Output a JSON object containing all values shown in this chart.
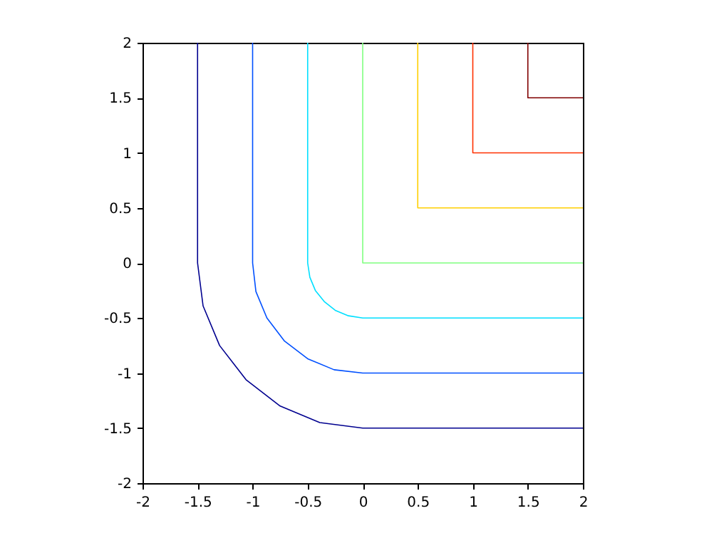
{
  "chart_data": {
    "type": "line",
    "xlim": [
      -2,
      2
    ],
    "ylim": [
      -2,
      2
    ],
    "xticks": [
      -2,
      -1.5,
      -1,
      -0.5,
      0,
      0.5,
      1,
      1.5,
      2
    ],
    "yticks": [
      -2,
      -1.5,
      -1,
      -0.5,
      0,
      0.5,
      1,
      1.5,
      2
    ],
    "grid": false,
    "legend": false,
    "line_style": "solid",
    "marker": "none",
    "series": [
      {
        "color": "#00008f",
        "x": [
          -1.5,
          -1.5,
          -1.45,
          -1.3,
          -1.06,
          -0.75,
          -0.39,
          0,
          2
        ],
        "values": [
          2,
          0,
          -0.39,
          -0.75,
          -1.06,
          -1.3,
          -1.45,
          -1.5,
          -1.5
        ]
      },
      {
        "color": "#0050ff",
        "x": [
          -1,
          -1,
          -0.97,
          -0.87,
          -0.71,
          -0.5,
          -0.26,
          0,
          2
        ],
        "values": [
          2,
          0,
          -0.26,
          -0.5,
          -0.71,
          -0.87,
          -0.97,
          -1,
          -1
        ]
      },
      {
        "color": "#00dfff",
        "x": [
          -0.5,
          -0.5,
          -0.48,
          -0.43,
          -0.35,
          -0.25,
          -0.13,
          0,
          2
        ],
        "values": [
          2,
          0,
          -0.13,
          -0.25,
          -0.35,
          -0.43,
          -0.48,
          -0.5,
          -0.5
        ]
      },
      {
        "color": "#80ff80",
        "x": [
          0,
          0,
          2
        ],
        "values": [
          2,
          0,
          0
        ]
      },
      {
        "color": "#ffcf00",
        "x": [
          0.5,
          0.5,
          2
        ],
        "values": [
          2,
          0.5,
          0.5
        ]
      },
      {
        "color": "#ff3000",
        "x": [
          1,
          1,
          2
        ],
        "values": [
          2,
          1,
          1
        ]
      },
      {
        "color": "#800000",
        "x": [
          1.5,
          1.5,
          2
        ],
        "values": [
          2,
          1.5,
          1.5
        ]
      }
    ]
  }
}
